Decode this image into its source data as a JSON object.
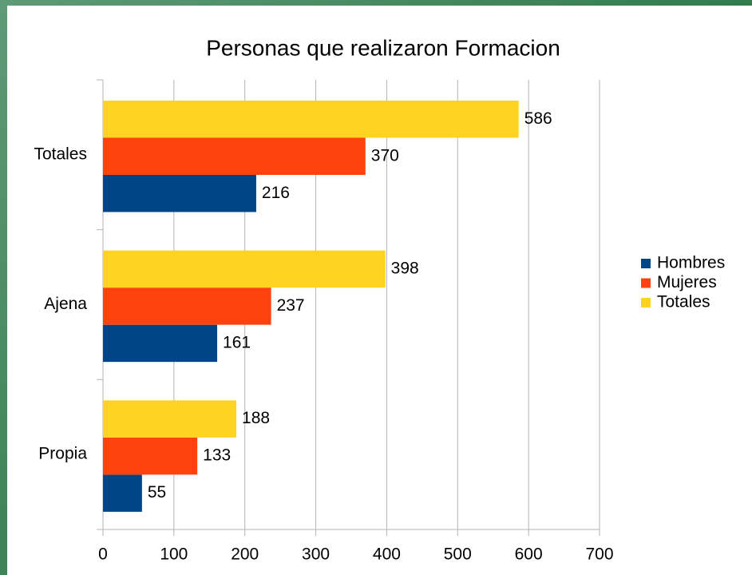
{
  "chart_data": {
    "type": "bar",
    "orientation": "horizontal",
    "title": "Personas que realizaron Formacion",
    "categories": [
      "Totales",
      "Ajena",
      "Propia"
    ],
    "series": [
      {
        "name": "Hombres",
        "color": "#004586",
        "values": [
          216,
          161,
          55
        ]
      },
      {
        "name": "Mujeres",
        "color": "#ff420e",
        "values": [
          370,
          237,
          133
        ]
      },
      {
        "name": "Totales",
        "color": "#ffd320",
        "values": [
          586,
          398,
          188
        ]
      }
    ],
    "xlim": [
      0,
      700
    ],
    "xticks": [
      0,
      100,
      200,
      300,
      400,
      500,
      600,
      700
    ],
    "grid": true,
    "legend": "right"
  }
}
